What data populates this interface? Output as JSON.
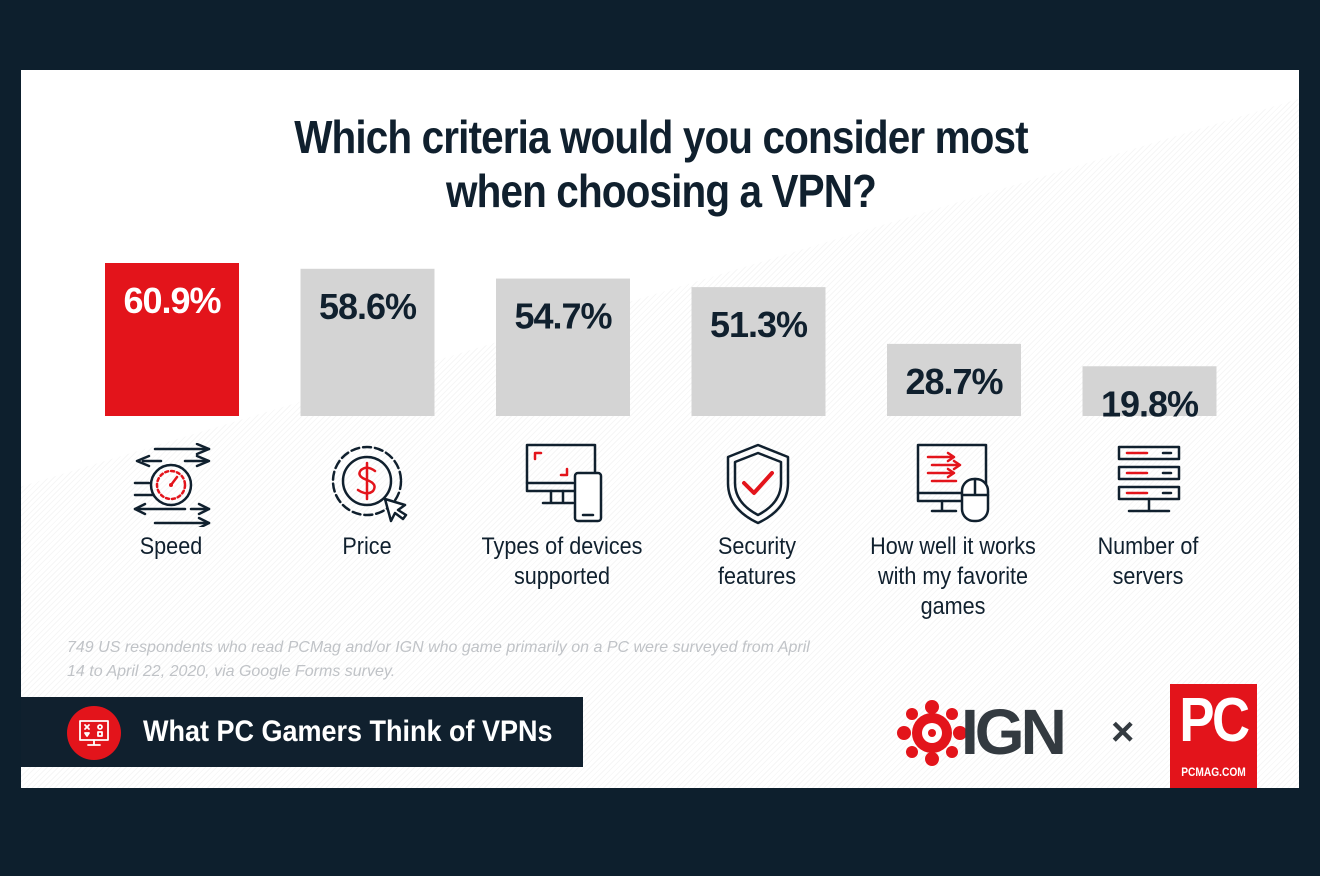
{
  "colors": {
    "background": "#0d1f2d",
    "highlight_bar": "#e3141b",
    "bar": "#d4d4d4",
    "text": "#10202e",
    "brand_red": "#e3141b"
  },
  "chart_data": {
    "type": "bar",
    "title": "Which criteria would you consider most when choosing a VPN?",
    "categories": [
      "Speed",
      "Price",
      "Types of devices supported",
      "Security features",
      "How well it works with my favorite games",
      "Number of servers"
    ],
    "values": [
      60.9,
      58.6,
      54.7,
      51.3,
      28.7,
      19.8
    ],
    "value_labels": [
      "60.9%",
      "58.6%",
      "54.7%",
      "51.3%",
      "28.7%",
      "19.8%"
    ],
    "highlight_index": 0,
    "category_lines": [
      [
        "Speed"
      ],
      [
        "Price"
      ],
      [
        "Types of devices",
        "supported"
      ],
      [
        "Security",
        "features"
      ],
      [
        "How well it works",
        "with my favorite",
        "games"
      ],
      [
        "Number of",
        "servers"
      ]
    ],
    "icons": [
      "speedometer-icon",
      "price-dollar-icon",
      "devices-icon",
      "security-shield-icon",
      "gaming-pc-icon",
      "servers-icon"
    ],
    "ylabel": "",
    "xlabel": "",
    "grid": false,
    "legend": "none"
  },
  "footnote": "749 US respondents who read PCMag and/or IGN who game primarily on a PC were surveyed from April 14 to April 22, 2020, via Google Forms survey.",
  "banner": {
    "title": "What PC Gamers Think of VPNs",
    "icon": "gaming-monitor-icon"
  },
  "logos": {
    "ign": "IGN",
    "separator": "×",
    "pc": "PC",
    "pc_sub": "PCMAG.COM"
  }
}
